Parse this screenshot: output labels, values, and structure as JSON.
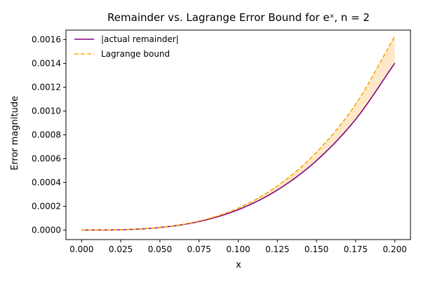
{
  "chart_data": {
    "type": "line",
    "title": "Remainder vs. Lagrange Error Bound for eˣ, n = 2",
    "xlabel": "x",
    "ylabel": "Error magnitude",
    "xlim": [
      -0.01,
      0.21
    ],
    "ylim": [
      -8e-05,
      0.00168
    ],
    "x_ticks": [
      0.0,
      0.025,
      0.05,
      0.075,
      0.1,
      0.125,
      0.15,
      0.175,
      0.2
    ],
    "x_tick_labels": [
      "0.000",
      "0.025",
      "0.050",
      "0.075",
      "0.100",
      "0.125",
      "0.150",
      "0.175",
      "0.200"
    ],
    "y_ticks": [
      0.0,
      0.0002,
      0.0004,
      0.0006,
      0.0008,
      0.001,
      0.0012,
      0.0014,
      0.0016
    ],
    "y_tick_labels": [
      "0.0000",
      "0.0002",
      "0.0004",
      "0.0006",
      "0.0008",
      "0.0010",
      "0.0012",
      "0.0014",
      "0.0016"
    ],
    "grid": false,
    "legend_position": "top-left",
    "fill_between_series": true,
    "fill_color": "#fde9c9",
    "series": [
      {
        "name": "|actual remainder|",
        "color": "#800080",
        "style": "solid",
        "x": [
          0.0,
          0.025,
          0.05,
          0.075,
          0.1,
          0.125,
          0.15,
          0.175,
          0.2
        ],
        "y": [
          0.0,
          2.6e-06,
          2.11e-05,
          7.15e-05,
          0.0001709,
          0.0003361,
          0.0005838,
          0.0009305,
          0.0014028
        ]
      },
      {
        "name": "Lagrange bound",
        "color": "#ffa500",
        "style": "dashed",
        "x": [
          0.0,
          0.025,
          0.05,
          0.075,
          0.1,
          0.125,
          0.15,
          0.175,
          0.2
        ],
        "y": [
          0.0,
          2.6e-06,
          2.19e-05,
          7.56e-05,
          0.0001842,
          0.0003706,
          0.0006535,
          0.0010569,
          0.0016285
        ]
      }
    ]
  }
}
